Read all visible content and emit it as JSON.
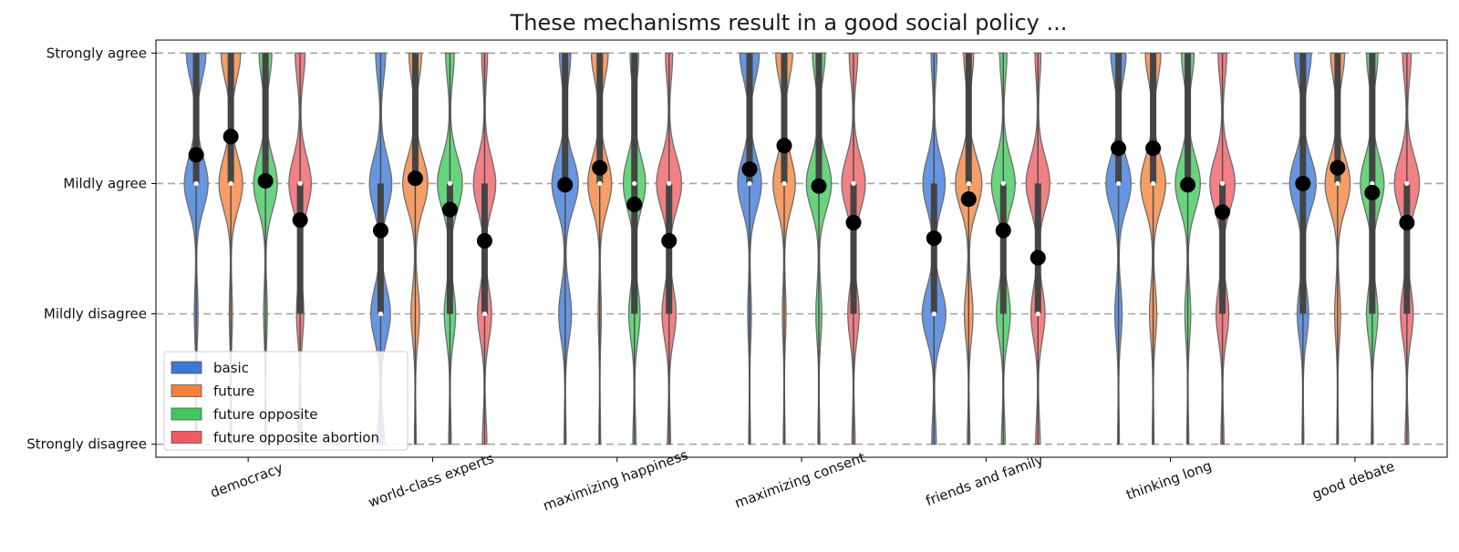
{
  "chart_data": {
    "type": "violin",
    "title": "These mechanisms result in a good social policy ...",
    "xlabel": "",
    "ylabel": "",
    "categories": [
      "democracy",
      "world-class experts",
      "maximizing happiness",
      "maximizing consent",
      "friends and family",
      "thinking long",
      "good debate"
    ],
    "y_tick_labels": [
      "Strongly disagree",
      "Mildly disagree",
      "Mildly agree",
      "Strongly agree"
    ],
    "y_tick_values": [
      1,
      2,
      3,
      4
    ],
    "ylim": [
      0.9,
      4.1
    ],
    "grid": "horizontal dashed at ticks",
    "legend_position": "bottom-left",
    "series": [
      {
        "name": "basic",
        "color": "#3b78d8",
        "medians": [
          3,
          2,
          3,
          3,
          2,
          3,
          3
        ],
        "q1": [
          3,
          2,
          3,
          3,
          2,
          3,
          2
        ],
        "q3": [
          4,
          3,
          4,
          4,
          3,
          4,
          4
        ],
        "means": [
          3.22,
          2.64,
          2.99,
          3.11,
          2.58,
          3.27,
          3.0
        ],
        "profiles": [
          [
            0.05,
            0.12,
            0.85,
            0.7
          ],
          [
            0.25,
            0.7,
            0.8,
            0.35
          ],
          [
            0.06,
            0.45,
            0.95,
            0.4
          ],
          [
            0.05,
            0.12,
            0.85,
            0.7
          ],
          [
            0.15,
            0.85,
            0.8,
            0.2
          ],
          [
            0.05,
            0.25,
            0.9,
            0.55
          ],
          [
            0.05,
            0.4,
            0.95,
            0.6
          ]
        ]
      },
      {
        "name": "future",
        "color": "#f5813b",
        "medians": [
          3,
          3,
          3,
          3,
          3,
          3,
          3
        ],
        "q1": [
          3,
          3,
          3,
          3,
          3,
          3,
          3
        ],
        "q3": [
          4,
          4,
          4,
          4,
          4,
          4,
          4
        ],
        "means": [
          3.36,
          3.04,
          3.12,
          3.29,
          2.88,
          3.27,
          3.12
        ],
        "profiles": [
          [
            0.05,
            0.1,
            0.85,
            0.7
          ],
          [
            0.05,
            0.3,
            0.9,
            0.45
          ],
          [
            0.05,
            0.1,
            0.85,
            0.6
          ],
          [
            0.05,
            0.12,
            0.8,
            0.6
          ],
          [
            0.08,
            0.3,
            0.95,
            0.35
          ],
          [
            0.05,
            0.25,
            0.9,
            0.55
          ],
          [
            0.05,
            0.2,
            0.9,
            0.5
          ]
        ]
      },
      {
        "name": "future opposite",
        "color": "#3ec95a",
        "medians": [
          3,
          3,
          3,
          3,
          3,
          3,
          3
        ],
        "q1": [
          3,
          2,
          2,
          3,
          2,
          3,
          2
        ],
        "q3": [
          4,
          3,
          4,
          4,
          3,
          4,
          4
        ],
        "means": [
          3.02,
          2.8,
          2.84,
          2.98,
          2.64,
          2.99,
          2.93
        ],
        "profiles": [
          [
            0.05,
            0.12,
            0.85,
            0.45
          ],
          [
            0.08,
            0.4,
            0.9,
            0.3
          ],
          [
            0.1,
            0.4,
            0.8,
            0.3
          ],
          [
            0.06,
            0.2,
            0.9,
            0.45
          ],
          [
            0.12,
            0.5,
            0.85,
            0.25
          ],
          [
            0.06,
            0.2,
            0.9,
            0.45
          ],
          [
            0.06,
            0.4,
            0.85,
            0.4
          ]
        ]
      },
      {
        "name": "future opposite abortion",
        "color": "#ee5c63",
        "medians": [
          3,
          2,
          3,
          3,
          2,
          3,
          3
        ],
        "q1": [
          2,
          2,
          2,
          2,
          2,
          2,
          2
        ],
        "q3": [
          3,
          3,
          3,
          3,
          3,
          3,
          3
        ],
        "means": [
          2.72,
          2.56,
          2.56,
          2.7,
          2.43,
          2.78,
          2.7
        ],
        "profiles": [
          [
            0.15,
            0.25,
            0.8,
            0.35
          ],
          [
            0.15,
            0.5,
            0.8,
            0.2
          ],
          [
            0.1,
            0.5,
            0.9,
            0.25
          ],
          [
            0.1,
            0.4,
            0.85,
            0.3
          ],
          [
            0.15,
            0.5,
            0.85,
            0.2
          ],
          [
            0.1,
            0.45,
            0.9,
            0.3
          ],
          [
            0.12,
            0.45,
            0.9,
            0.3
          ]
        ]
      }
    ]
  }
}
